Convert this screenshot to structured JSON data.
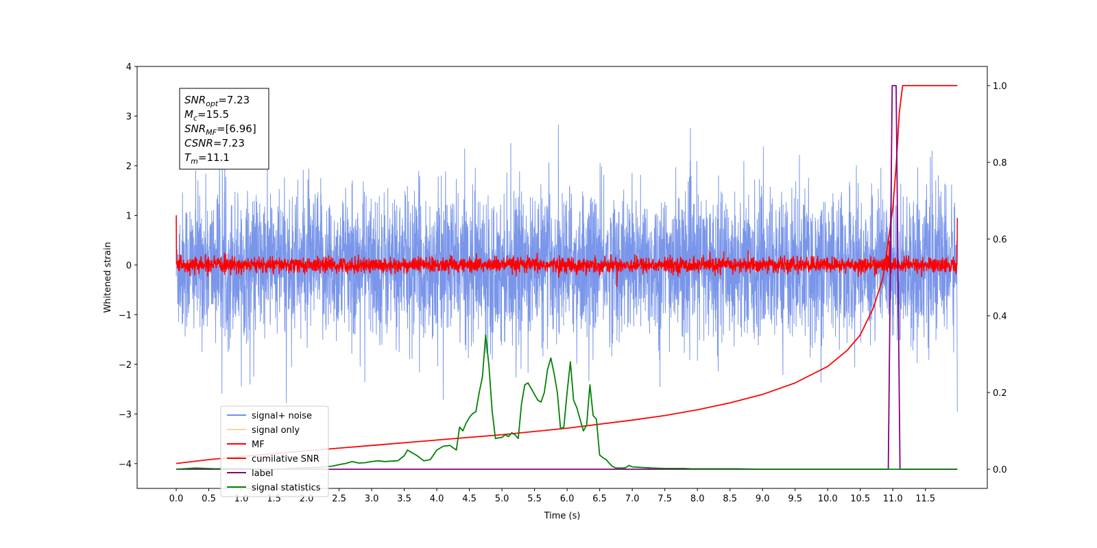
{
  "chart_data": {
    "type": "line",
    "xlabel": "Time (s)",
    "ylabel": "Whitened strain",
    "xlim": [
      -0.6,
      12.45
    ],
    "ylim": [
      -4.5,
      4.0
    ],
    "y2lim": [
      -0.05,
      1.05
    ],
    "x_ticks": [
      0.0,
      0.5,
      1.0,
      1.5,
      2.0,
      2.5,
      3.0,
      3.5,
      4.0,
      4.5,
      5.0,
      5.5,
      6.0,
      6.5,
      7.0,
      7.5,
      8.0,
      8.5,
      9.0,
      9.5,
      10.0,
      10.5,
      11.0,
      11.5
    ],
    "x_tick_labels": [
      "0.0",
      "0.5",
      "1.0",
      "1.5",
      "2.0",
      "2.5",
      "3.0",
      "3.5",
      "4.0",
      "4.5",
      "5.0",
      "5.5",
      "6.0",
      "6.5",
      "7.0",
      "7.5",
      "8.0",
      "8.5",
      "9.0",
      "9.5",
      "10.0",
      "10.5",
      "11.0",
      "11.5"
    ],
    "y_ticks": [
      4,
      3,
      2,
      1,
      0,
      -1,
      -2,
      -3,
      -4
    ],
    "y_tick_labels": [
      "4",
      "3",
      "2",
      "1",
      "0",
      "−1",
      "−2",
      "−3",
      "−4"
    ],
    "y2_ticks": [
      1.0,
      0.8,
      0.6,
      0.4,
      0.2,
      0.0
    ],
    "y2_tick_labels": [
      "1.0",
      "0.8",
      "0.6",
      "0.4",
      "0.2",
      "0.0"
    ],
    "legend_position": "lower-left",
    "grid": false,
    "annotation": [
      {
        "base": "SNR",
        "sub": "opt",
        "rest": "=7.23"
      },
      {
        "base": "M",
        "sub": "c",
        "rest": "=15.5"
      },
      {
        "base": "SNR",
        "sub": "MF",
        "rest": "=[6.96]"
      },
      {
        "base": "CSNR",
        "sub": "",
        "rest": "=7.23"
      },
      {
        "base": "T",
        "sub": "m",
        "rest": "=11.1"
      }
    ],
    "series": [
      {
        "name": "signal+ noise",
        "axis": "left",
        "color": "#4169e1",
        "kind": "noise",
        "x_range": [
          0.0,
          11.99
        ],
        "amplitude_band": [
          -1.5,
          1.3
        ],
        "peak_range": [
          -3.0,
          3.6
        ]
      },
      {
        "name": "signal only",
        "axis": "left",
        "color": "#f5c56b",
        "kind": "chirp",
        "x_range": [
          0.0,
          11.99
        ],
        "peak_time": 11.05,
        "peak_amplitude": 0.5
      },
      {
        "name": "MF",
        "axis": "left",
        "color": "#ff0000",
        "kind": "noise",
        "x_range": [
          0.0,
          11.99
        ],
        "amplitude_band": [
          -0.2,
          0.2
        ],
        "start_value": 1.0,
        "end_value": 0.95
      },
      {
        "name": "cumilative SNR",
        "axis": "right",
        "color": "#ff0000",
        "kind": "curve",
        "x": [
          0.0,
          0.5,
          1.0,
          2.0,
          3.0,
          4.0,
          5.0,
          6.0,
          7.0,
          7.5,
          8.0,
          8.5,
          9.0,
          9.5,
          10.0,
          10.3,
          10.5,
          10.7,
          10.85,
          11.0,
          11.05,
          11.1,
          11.15,
          11.3,
          11.99
        ],
        "values": [
          0.015,
          0.025,
          0.033,
          0.048,
          0.062,
          0.076,
          0.09,
          0.107,
          0.128,
          0.14,
          0.155,
          0.173,
          0.195,
          0.225,
          0.268,
          0.31,
          0.35,
          0.42,
          0.5,
          0.68,
          0.79,
          0.93,
          1.0,
          1.0,
          1.0
        ]
      },
      {
        "name": "label",
        "axis": "right",
        "color": "#800080",
        "kind": "step",
        "x": [
          0.0,
          10.93,
          10.99,
          11.05,
          11.11,
          11.99
        ],
        "values": [
          0.0,
          0.0,
          1.0,
          1.0,
          0.0,
          0.0
        ]
      },
      {
        "name": "signal statistics",
        "axis": "right",
        "color": "#008000",
        "kind": "curve",
        "x": [
          0.0,
          0.3,
          0.6,
          1.0,
          1.5,
          2.0,
          2.2,
          2.4,
          2.5,
          2.6,
          2.7,
          2.8,
          2.9,
          3.0,
          3.1,
          3.2,
          3.3,
          3.4,
          3.5,
          3.55,
          3.6,
          3.7,
          3.8,
          3.9,
          4.0,
          4.1,
          4.2,
          4.3,
          4.35,
          4.4,
          4.45,
          4.5,
          4.55,
          4.6,
          4.65,
          4.7,
          4.75,
          4.8,
          4.85,
          4.9,
          4.95,
          5.0,
          5.05,
          5.1,
          5.15,
          5.2,
          5.25,
          5.3,
          5.35,
          5.4,
          5.45,
          5.5,
          5.55,
          5.6,
          5.65,
          5.7,
          5.75,
          5.8,
          5.85,
          5.9,
          5.95,
          6.0,
          6.05,
          6.1,
          6.15,
          6.2,
          6.25,
          6.3,
          6.35,
          6.4,
          6.45,
          6.5,
          6.55,
          6.6,
          6.65,
          6.7,
          6.75,
          6.8,
          6.85,
          6.9,
          6.95,
          7.0,
          7.1,
          7.3,
          7.5,
          7.7,
          7.8,
          7.9,
          8.0,
          8.2,
          8.4,
          8.6,
          9.0,
          9.5,
          10.0,
          11.0,
          11.99
        ],
        "values": [
          0.0,
          0.003,
          0.001,
          0.002,
          0.0,
          0.004,
          0.005,
          0.008,
          0.012,
          0.015,
          0.02,
          0.016,
          0.017,
          0.02,
          0.022,
          0.02,
          0.021,
          0.022,
          0.035,
          0.05,
          0.045,
          0.035,
          0.022,
          0.025,
          0.05,
          0.06,
          0.062,
          0.05,
          0.11,
          0.1,
          0.12,
          0.135,
          0.145,
          0.15,
          0.2,
          0.24,
          0.35,
          0.27,
          0.15,
          0.08,
          0.082,
          0.083,
          0.09,
          0.085,
          0.095,
          0.09,
          0.08,
          0.17,
          0.22,
          0.225,
          0.21,
          0.195,
          0.18,
          0.175,
          0.2,
          0.26,
          0.29,
          0.25,
          0.2,
          0.105,
          0.11,
          0.2,
          0.28,
          0.18,
          0.16,
          0.13,
          0.1,
          0.115,
          0.22,
          0.14,
          0.13,
          0.037,
          0.03,
          0.025,
          0.015,
          0.007,
          0.003,
          0.003,
          0.003,
          0.004,
          0.01,
          0.006,
          0.005,
          0.003,
          0.002,
          0.002,
          0.002,
          0.001,
          0.001,
          0.001,
          0.001,
          0.001,
          0.0,
          0.0,
          0.0,
          0.0,
          0.0
        ]
      }
    ]
  }
}
